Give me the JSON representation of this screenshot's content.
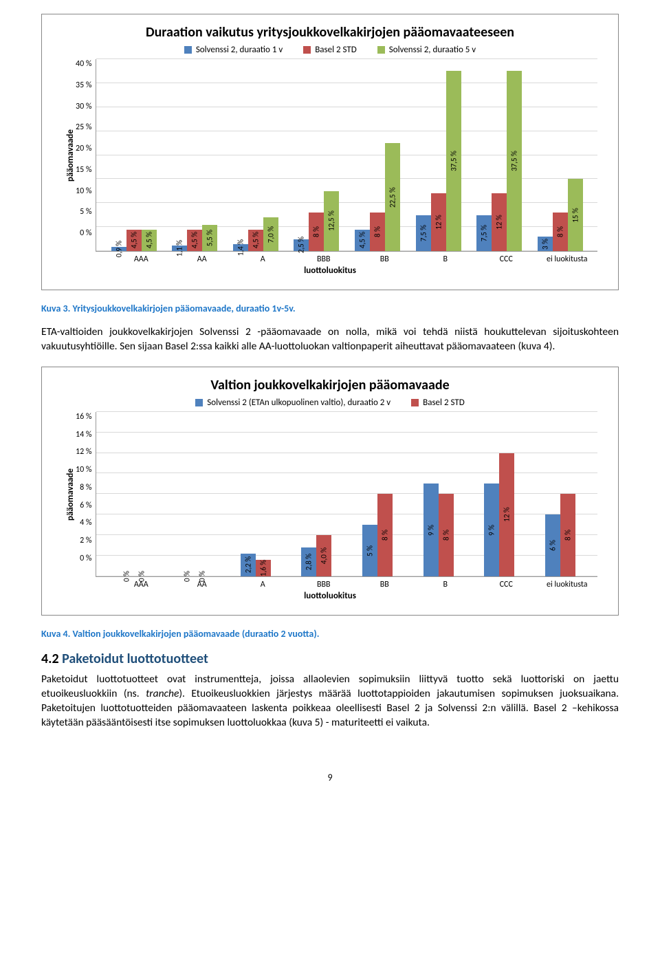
{
  "chart1": {
    "title": "Duraation vaikutus yritysjoukkovelkakirjojen pääomavaateeseen",
    "y_label": "pääomavaade",
    "x_title": "luottoluokitus",
    "ymax": 40,
    "ytick_step": 5,
    "grid_color": "#d9d9d9",
    "legend": [
      {
        "name": "Solvenssi 2, duraatio 1 v",
        "color": "#4f81bd"
      },
      {
        "name": "Basel 2 STD",
        "color": "#c0504d"
      },
      {
        "name": "Solvenssi 2, duraatio 5 v",
        "color": "#9bbb59"
      }
    ],
    "categories": [
      "AAA",
      "AA",
      "A",
      "BBB",
      "BB",
      "B",
      "CCC",
      "ei luokitusta"
    ],
    "values": [
      [
        0.9,
        4.5,
        4.5
      ],
      [
        1.1,
        4.5,
        5.5
      ],
      [
        1.4,
        4.5,
        7.0
      ],
      [
        2.5,
        8.0,
        12.5
      ],
      [
        4.5,
        8.0,
        22.5
      ],
      [
        7.5,
        12.0,
        37.5
      ],
      [
        7.5,
        12.0,
        37.5
      ],
      [
        3.0,
        8.0,
        15.0
      ]
    ],
    "value_labels": [
      [
        "0,9 %",
        "4,5 %",
        "4,5 %"
      ],
      [
        "1,1 %",
        "4,5 %",
        "5,5 %"
      ],
      [
        "1,4 %",
        "4,5 %",
        "7,0 %"
      ],
      [
        "2,5 %",
        "8 %",
        "12,5 %"
      ],
      [
        "4,5 %",
        "8 %",
        "22,5 %"
      ],
      [
        "7,5 %",
        "12 %",
        "37,5 %"
      ],
      [
        "7,5 %",
        "12 %",
        "37,5 %"
      ],
      [
        "3 %",
        "8 %",
        "15 %"
      ]
    ]
  },
  "caption1": "Kuva 3. Yritysjoukkovelkakirjojen pääomavaade, duraatio 1v-5v.",
  "para1": "ETA-valtioiden joukkovelkakirjojen Solvenssi 2 -pääomavaade on nolla, mikä voi tehdä niistä houkuttelevan sijoituskohteen vakuutusyhtiöille. Sen sijaan Basel 2:ssa kaikki alle AA-luottoluokan valtionpaperit aiheuttavat pääomavaateen (kuva 4).",
  "chart2": {
    "title": "Valtion joukkovelkakirjojen pääomavaade",
    "y_label": "pääomavaade",
    "x_title": "luottoluokitus",
    "ymax": 16,
    "ytick_step": 2,
    "grid_color": "#d9d9d9",
    "legend": [
      {
        "name": "Solvenssi 2 (ETAn ulkopuolinen valtio), duraatio 2 v",
        "color": "#4f81bd"
      },
      {
        "name": "Basel 2 STD",
        "color": "#c0504d"
      }
    ],
    "categories": [
      "AAA",
      "AA",
      "A",
      "BBB",
      "BB",
      "B",
      "CCC",
      "ei luokitusta"
    ],
    "values": [
      [
        0,
        0
      ],
      [
        0,
        0
      ],
      [
        2.2,
        1.6
      ],
      [
        2.8,
        4.0
      ],
      [
        5,
        8
      ],
      [
        9,
        8
      ],
      [
        9,
        12
      ],
      [
        6,
        8
      ]
    ],
    "value_labels": [
      [
        "0 %",
        "0 %"
      ],
      [
        "0 %",
        "0 %"
      ],
      [
        "2,2 %",
        "1,6 %"
      ],
      [
        "2,8 %",
        "4,0 %"
      ],
      [
        "5 %",
        "8 %"
      ],
      [
        "9 %",
        "8 %"
      ],
      [
        "9 %",
        "12 %"
      ],
      [
        "6 %",
        "8 %"
      ]
    ]
  },
  "caption2": "Kuva 4. Valtion joukkovelkakirjojen pääomavaade (duraatio 2 vuotta).",
  "section": {
    "num": "4.2",
    "title": "Paketoidut luottotuotteet"
  },
  "para2_a": "Paketoidut luottotuotteet ovat instrumentteja, joissa allaolevien sopimuksiin liittyvä tuotto sekä luottoriski on jaettu etuoikeusluokkiin (ns. ",
  "para2_i": "tranche",
  "para2_b": "). Etuoikeusluokkien järjestys määrää luottotappioiden jakautumisen sopimuksen juoksuaikana. Paketoitujen luottotuotteiden pääomavaateen laskenta poikkeaa oleellisesti Basel 2 ja Solvenssi 2:n välillä. Basel 2 –kehikossa käytetään pääsääntöisesti itse sopimuksen luottoluokkaa (kuva 5) - maturiteetti ei vaikuta.",
  "page_num": "9"
}
